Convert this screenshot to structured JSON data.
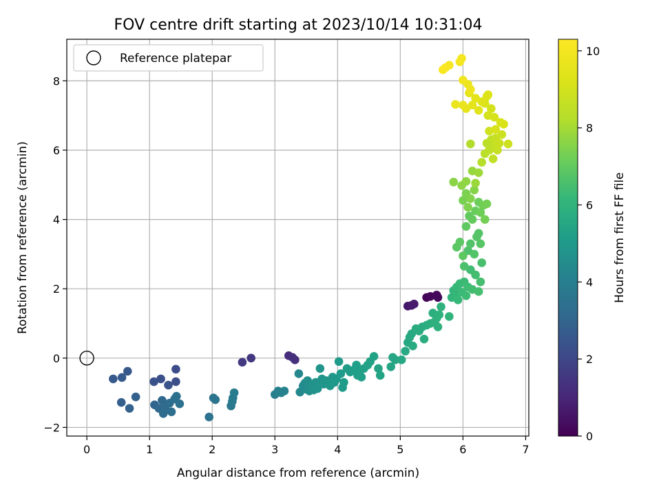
{
  "chart_data": {
    "type": "scatter",
    "title": "FOV centre drift starting at 2023/10/14 10:31:04",
    "xlabel": "Angular distance from reference (arcmin)",
    "ylabel": "Rotation from reference (arcmin)",
    "xlim": [
      -0.32,
      7.05
    ],
    "ylim": [
      -2.25,
      9.2
    ],
    "xticks": [
      0,
      1,
      2,
      3,
      4,
      5,
      6,
      7
    ],
    "xtick_labels": [
      "0",
      "1",
      "2",
      "3",
      "4",
      "5",
      "6",
      "7"
    ],
    "yticks": [
      -2,
      0,
      2,
      4,
      6,
      8
    ],
    "ytick_labels": [
      "−2",
      "0",
      "2",
      "4",
      "6",
      "8"
    ],
    "grid": true,
    "legend": {
      "position": "top-left",
      "label": "Reference platepar",
      "marker": "open-circle"
    },
    "reference_point": {
      "x": 0,
      "y": 0
    },
    "colorbar": {
      "label": "Hours from first FF file",
      "colormap": "viridis",
      "range": [
        0,
        10.3
      ],
      "ticks": [
        0,
        2,
        4,
        6,
        8,
        10
      ],
      "tick_labels": [
        "0",
        "2",
        "4",
        "6",
        "8",
        "10"
      ]
    },
    "points": [
      [
        5.42,
        1.75,
        0.1
      ],
      [
        5.48,
        1.78,
        0.15
      ],
      [
        5.58,
        1.82,
        0.2
      ],
      [
        5.6,
        1.75,
        0.2
      ],
      [
        5.12,
        1.5,
        0.6
      ],
      [
        5.18,
        1.52,
        0.65
      ],
      [
        5.22,
        1.56,
        0.7
      ],
      [
        3.22,
        0.07,
        1.2
      ],
      [
        3.28,
        0.02,
        1.25
      ],
      [
        3.32,
        -0.05,
        1.3
      ],
      [
        2.62,
        0.0,
        1.5
      ],
      [
        2.48,
        -0.12,
        1.55
      ],
      [
        1.42,
        -0.32,
        2.2
      ],
      [
        1.42,
        -0.68,
        2.25
      ],
      [
        1.18,
        -0.6,
        2.3
      ],
      [
        1.07,
        -0.68,
        2.35
      ],
      [
        1.3,
        -0.78,
        2.4
      ],
      [
        0.65,
        -0.38,
        2.55
      ],
      [
        0.42,
        -0.6,
        2.6
      ],
      [
        0.56,
        -0.56,
        2.65
      ],
      [
        0.55,
        -1.28,
        2.8
      ],
      [
        0.78,
        -1.12,
        2.85
      ],
      [
        0.68,
        -1.45,
        2.9
      ],
      [
        1.08,
        -1.35,
        3.0
      ],
      [
        1.15,
        -1.45,
        3.05
      ],
      [
        1.2,
        -1.22,
        3.1
      ],
      [
        1.22,
        -1.52,
        3.15
      ],
      [
        1.25,
        -1.42,
        3.2
      ],
      [
        1.22,
        -1.6,
        3.25
      ],
      [
        1.32,
        -1.3,
        3.3
      ],
      [
        1.35,
        -1.55,
        3.35
      ],
      [
        1.4,
        -1.18,
        3.4
      ],
      [
        1.43,
        -1.1,
        3.42
      ],
      [
        1.48,
        -1.32,
        3.45
      ],
      [
        1.95,
        -1.7,
        3.5
      ],
      [
        2.02,
        -1.15,
        3.55
      ],
      [
        2.05,
        -1.2,
        3.6
      ],
      [
        2.3,
        -1.38,
        3.7
      ],
      [
        2.32,
        -1.25,
        3.75
      ],
      [
        2.33,
        -1.15,
        3.8
      ],
      [
        2.35,
        -1.0,
        3.85
      ],
      [
        3.0,
        -1.05,
        4.0
      ],
      [
        3.05,
        -0.95,
        4.05
      ],
      [
        3.1,
        -1.0,
        4.1
      ],
      [
        3.15,
        -0.95,
        4.15
      ],
      [
        3.38,
        -0.45,
        4.3
      ],
      [
        3.4,
        -0.98,
        4.35
      ],
      [
        3.45,
        -0.8,
        4.4
      ],
      [
        3.48,
        -0.72,
        4.45
      ],
      [
        3.5,
        -0.9,
        4.5
      ],
      [
        3.52,
        -0.65,
        4.55
      ],
      [
        3.55,
        -0.95,
        4.6
      ],
      [
        3.58,
        -0.85,
        4.65
      ],
      [
        3.6,
        -0.75,
        4.7
      ],
      [
        3.62,
        -0.92,
        4.72
      ],
      [
        3.65,
        -0.7,
        4.75
      ],
      [
        3.68,
        -0.88,
        4.78
      ],
      [
        3.72,
        -0.3,
        4.8
      ],
      [
        3.75,
        -0.6,
        4.82
      ],
      [
        3.78,
        -0.75,
        4.85
      ],
      [
        3.82,
        -0.65,
        4.88
      ],
      [
        3.88,
        -0.8,
        4.9
      ],
      [
        3.92,
        -0.55,
        4.92
      ],
      [
        3.95,
        -0.7,
        4.95
      ],
      [
        3.98,
        -0.6,
        4.98
      ],
      [
        4.02,
        -0.1,
        5.0
      ],
      [
        4.05,
        -0.45,
        5.02
      ],
      [
        4.08,
        -0.85,
        5.05
      ],
      [
        4.1,
        -0.7,
        5.08
      ],
      [
        4.15,
        -0.3,
        5.1
      ],
      [
        4.2,
        -0.4,
        5.12
      ],
      [
        4.25,
        -0.35,
        5.15
      ],
      [
        4.3,
        -0.2,
        5.18
      ],
      [
        4.32,
        -0.5,
        5.2
      ],
      [
        4.35,
        -0.38,
        5.22
      ],
      [
        4.38,
        -0.55,
        5.25
      ],
      [
        4.42,
        -0.3,
        5.28
      ],
      [
        4.48,
        -0.2,
        5.3
      ],
      [
        4.52,
        -0.1,
        5.32
      ],
      [
        4.58,
        0.05,
        5.35
      ],
      [
        4.65,
        -0.3,
        5.38
      ],
      [
        4.68,
        -0.5,
        5.4
      ],
      [
        4.85,
        -0.25,
        5.45
      ],
      [
        4.88,
        0.02,
        5.48
      ],
      [
        4.92,
        -0.05,
        5.5
      ],
      [
        5.02,
        -0.05,
        5.52
      ],
      [
        5.08,
        0.2,
        5.55
      ],
      [
        5.12,
        0.45,
        5.58
      ],
      [
        5.15,
        0.6,
        5.6
      ],
      [
        5.18,
        0.7,
        5.62
      ],
      [
        5.2,
        0.35,
        5.65
      ],
      [
        5.25,
        0.85,
        5.68
      ],
      [
        5.3,
        0.78,
        5.7
      ],
      [
        5.35,
        0.9,
        5.72
      ],
      [
        5.38,
        0.55,
        5.75
      ],
      [
        5.42,
        0.95,
        5.78
      ],
      [
        5.48,
        1.0,
        5.8
      ],
      [
        5.52,
        1.3,
        5.82
      ],
      [
        5.55,
        1.05,
        5.85
      ],
      [
        5.58,
        1.15,
        5.88
      ],
      [
        5.6,
        0.9,
        5.9
      ],
      [
        5.62,
        1.25,
        5.92
      ],
      [
        5.65,
        1.48,
        5.95
      ],
      [
        5.78,
        1.2,
        6.0
      ],
      [
        5.82,
        1.75,
        6.05
      ],
      [
        5.85,
        1.95,
        6.1
      ],
      [
        5.88,
        1.82,
        6.15
      ],
      [
        5.9,
        2.05,
        6.2
      ],
      [
        5.92,
        1.68,
        6.22
      ],
      [
        5.95,
        2.15,
        6.25
      ],
      [
        5.98,
        1.9,
        6.28
      ],
      [
        6.02,
        2.2,
        6.3
      ],
      [
        6.05,
        1.8,
        6.32
      ],
      [
        6.08,
        2.05,
        6.35
      ],
      [
        6.12,
        2.55,
        6.4
      ],
      [
        6.15,
        1.98,
        6.42
      ],
      [
        6.2,
        2.4,
        6.45
      ],
      [
        6.25,
        1.92,
        6.48
      ],
      [
        6.28,
        2.2,
        6.5
      ],
      [
        6.3,
        2.75,
        6.55
      ],
      [
        6.02,
        2.65,
        6.6
      ],
      [
        6.08,
        3.1,
        6.65
      ],
      [
        6.12,
        3.3,
        6.7
      ],
      [
        6.18,
        3.0,
        6.72
      ],
      [
        6.22,
        3.5,
        6.75
      ],
      [
        6.25,
        3.6,
        6.78
      ],
      [
        6.28,
        3.3,
        6.8
      ],
      [
        5.9,
        3.2,
        6.85
      ],
      [
        5.95,
        3.35,
        6.88
      ],
      [
        6.0,
        2.95,
        6.9
      ],
      [
        6.05,
        3.8,
        6.95
      ],
      [
        6.1,
        4.1,
        7.0
      ],
      [
        6.15,
        4.0,
        7.05
      ],
      [
        6.2,
        4.25,
        7.1
      ],
      [
        6.25,
        4.5,
        7.15
      ],
      [
        6.28,
        4.2,
        7.2
      ],
      [
        6.32,
        4.4,
        7.25
      ],
      [
        6.35,
        4.0,
        7.28
      ],
      [
        6.38,
        4.45,
        7.3
      ],
      [
        6.0,
        4.55,
        7.35
      ],
      [
        6.05,
        4.75,
        7.4
      ],
      [
        6.08,
        4.35,
        7.45
      ],
      [
        6.12,
        4.6,
        7.5
      ],
      [
        6.18,
        4.85,
        7.55
      ],
      [
        5.85,
        5.08,
        7.6
      ],
      [
        5.98,
        4.98,
        7.65
      ],
      [
        6.05,
        5.1,
        7.7
      ],
      [
        6.15,
        5.4,
        7.8
      ],
      [
        6.2,
        5.05,
        7.85
      ],
      [
        6.25,
        5.35,
        7.9
      ],
      [
        6.12,
        6.18,
        8.2
      ],
      [
        6.3,
        5.65,
        8.3
      ],
      [
        6.35,
        5.9,
        8.35
      ],
      [
        6.38,
        6.2,
        8.4
      ],
      [
        6.42,
        6.0,
        8.45
      ],
      [
        6.45,
        6.3,
        8.5
      ],
      [
        6.48,
        5.75,
        8.55
      ],
      [
        6.5,
        6.1,
        8.6
      ],
      [
        6.52,
        6.35,
        8.65
      ],
      [
        6.55,
        6.0,
        8.7
      ],
      [
        6.58,
        6.2,
        8.75
      ],
      [
        6.62,
        6.45,
        8.8
      ],
      [
        6.72,
        6.18,
        8.85
      ],
      [
        6.42,
        6.55,
        8.9
      ],
      [
        6.4,
        7.0,
        9.0
      ],
      [
        6.45,
        7.2,
        9.05
      ],
      [
        6.5,
        6.95,
        9.1
      ],
      [
        6.52,
        6.6,
        9.12
      ],
      [
        6.6,
        6.8,
        9.15
      ],
      [
        6.65,
        6.75,
        9.18
      ],
      [
        6.35,
        7.35,
        9.2
      ],
      [
        6.38,
        7.55,
        9.25
      ],
      [
        6.4,
        7.6,
        9.3
      ],
      [
        6.3,
        7.4,
        9.35
      ],
      [
        6.25,
        7.15,
        9.4
      ],
      [
        6.2,
        7.5,
        9.45
      ],
      [
        6.15,
        7.3,
        9.5
      ],
      [
        6.1,
        7.65,
        9.55
      ],
      [
        6.05,
        7.2,
        9.6
      ],
      [
        6.0,
        7.3,
        9.65
      ],
      [
        5.88,
        7.32,
        9.7
      ],
      [
        6.08,
        7.9,
        9.8
      ],
      [
        6.12,
        7.75,
        9.85
      ],
      [
        6.0,
        8.02,
        9.9
      ],
      [
        5.95,
        8.55,
        10.0
      ],
      [
        5.98,
        8.65,
        10.05
      ],
      [
        5.78,
        8.45,
        10.1
      ],
      [
        5.72,
        8.38,
        10.15
      ],
      [
        5.68,
        8.32,
        10.2
      ]
    ]
  }
}
